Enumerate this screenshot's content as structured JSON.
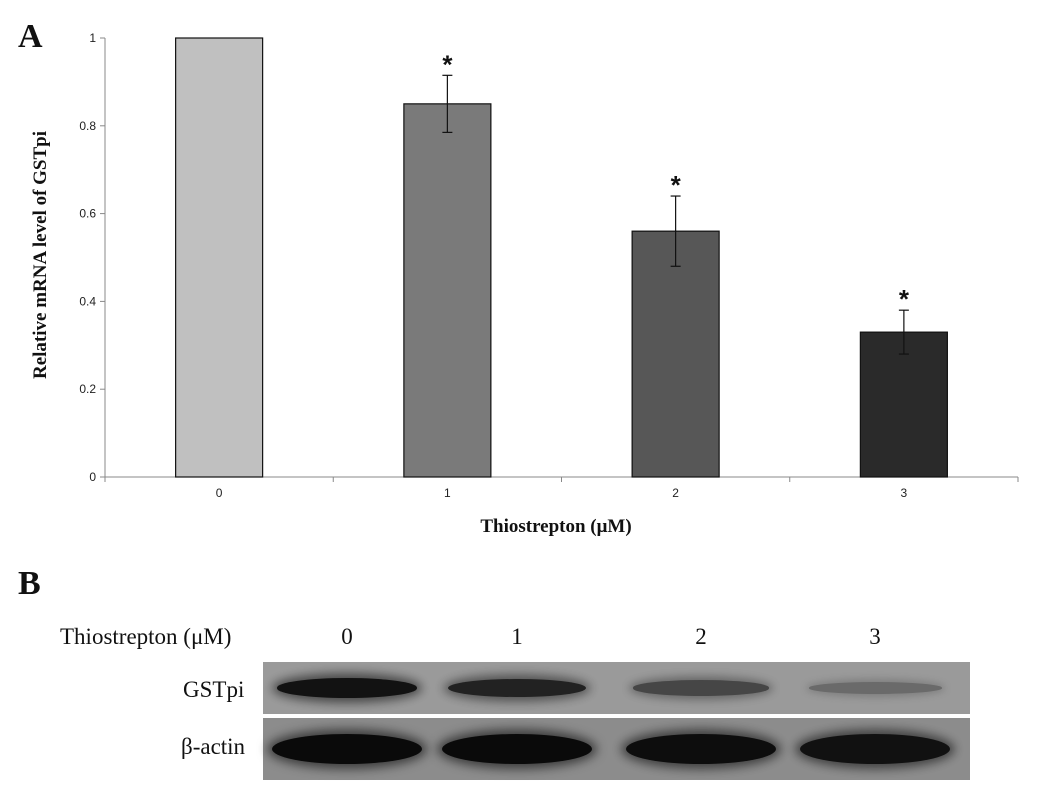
{
  "panels": {
    "a": "A",
    "b": "B"
  },
  "chart_data": {
    "type": "bar",
    "categories": [
      "0",
      "1",
      "2",
      "3"
    ],
    "values": [
      1.0,
      0.85,
      0.56,
      0.33
    ],
    "errors": [
      0,
      0.065,
      0.08,
      0.05
    ],
    "significance": [
      "",
      "*",
      "*",
      "*"
    ],
    "colors": [
      "#c0c0c0",
      "#7a7a7a",
      "#575757",
      "#2a2a2a"
    ],
    "title": "",
    "xlabel": "Thiostrepton (μM)",
    "ylabel": "Relative mRNA level of GSTpi",
    "ylim": [
      0,
      1
    ],
    "yticks": [
      "0",
      "0.2",
      "0.4",
      "0.6",
      "0.8",
      "1"
    ],
    "grid": false,
    "legend": "none"
  },
  "blot": {
    "header_label": "Thiostrepton (μM)",
    "lanes": [
      "0",
      "1",
      "2",
      "3"
    ],
    "rows": [
      {
        "label": "GSTpi",
        "intensity": [
          0.95,
          0.85,
          0.6,
          0.3
        ]
      },
      {
        "label": "β-actin",
        "intensity": [
          1.0,
          1.0,
          0.98,
          0.95
        ]
      }
    ]
  }
}
